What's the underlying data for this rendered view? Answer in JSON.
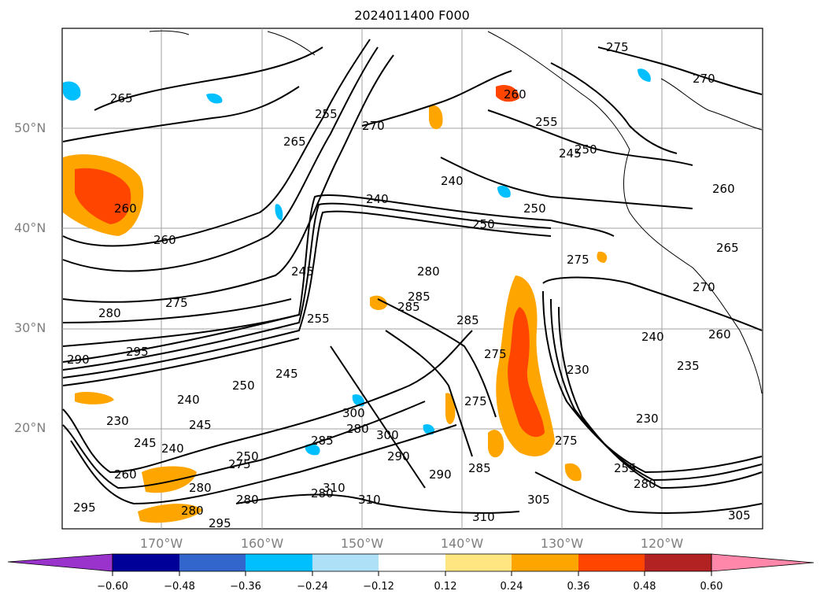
{
  "title": "2024011400 F000",
  "lat_labels": [
    "50°N",
    "40°N",
    "30°N",
    "20°N"
  ],
  "lon_labels": [
    "170°W",
    "160°W",
    "150°W",
    "140°W",
    "130°W",
    "120°W"
  ],
  "colorbar": {
    "ticks": [
      "−0.60",
      "−0.48",
      "−0.36",
      "−0.24",
      "−0.12",
      "0.12",
      "0.24",
      "0.36",
      "0.48",
      "0.60"
    ],
    "colors": [
      "#9933cc",
      "#000099",
      "#3366cc",
      "#00bfff",
      "#aee0f8",
      "#ffffff",
      "#ffe680",
      "#ffa500",
      "#ff4500",
      "#b22222",
      "#ff88aa"
    ]
  },
  "contour_labels": [
    "265",
    "255",
    "260",
    "265",
    "270",
    "275",
    "260",
    "270",
    "275",
    "260",
    "255",
    "250",
    "245",
    "240",
    "240",
    "250",
    "245",
    "260",
    "265",
    "270",
    "275",
    "260",
    "255",
    "280",
    "275",
    "280",
    "285",
    "285",
    "280",
    "275",
    "280",
    "290",
    "295",
    "285",
    "245",
    "250",
    "240",
    "245",
    "230",
    "240",
    "245",
    "255",
    "260",
    "280",
    "275",
    "280",
    "300",
    "290",
    "295",
    "285",
    "280",
    "310",
    "305",
    "310",
    "230",
    "235",
    "240",
    "230",
    "250",
    "275",
    "280",
    "285",
    "290",
    "295",
    "300",
    "305",
    "310",
    "250"
  ],
  "features": {
    "coastline": "coastline",
    "positive_blob": "positive anomaly",
    "negative_blob": "negative anomaly"
  }
}
